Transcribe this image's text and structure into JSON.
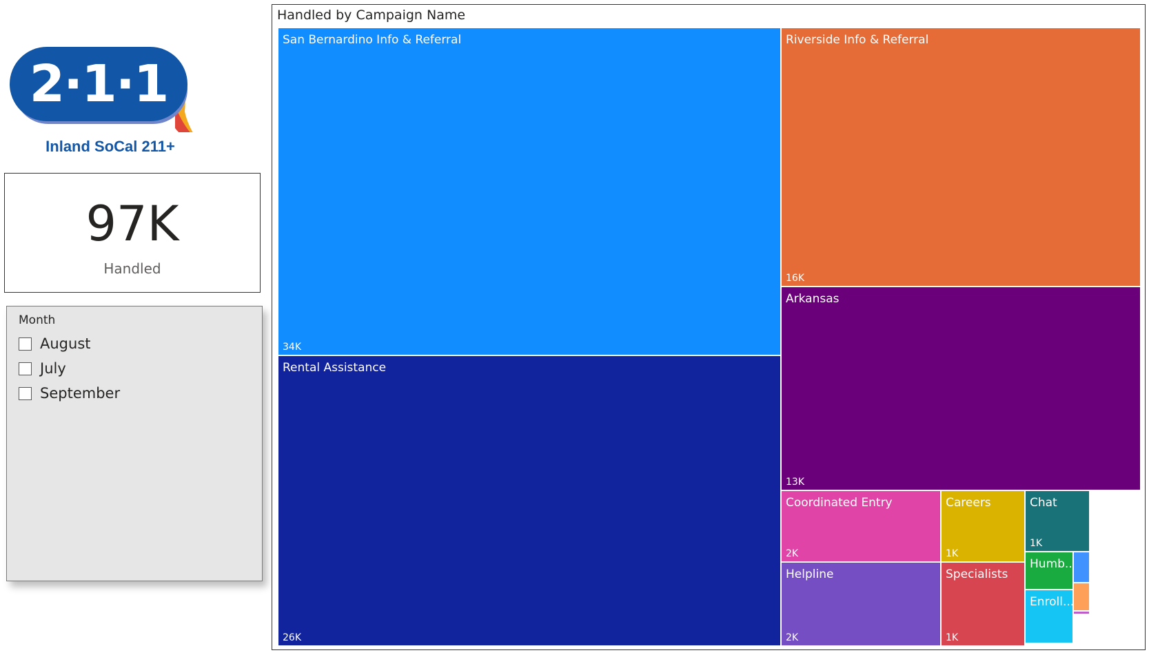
{
  "logo": {
    "mark": "2·1·1",
    "caption": "Inland SoCal 211+"
  },
  "kpi": {
    "value": "97K",
    "label": "Handled"
  },
  "slicer": {
    "title": "Month",
    "options": [
      {
        "label": "August",
        "checked": false
      },
      {
        "label": "July",
        "checked": false
      },
      {
        "label": "September",
        "checked": false
      }
    ]
  },
  "chart_data": {
    "type": "treemap",
    "title": "Handled by Campaign Name",
    "items": [
      {
        "name": "San Bernardino Info & Referral",
        "value": 34000,
        "value_label": "34K",
        "color": "#118dff"
      },
      {
        "name": "Rental Assistance",
        "value": 26000,
        "value_label": "26K",
        "color": "#12239e"
      },
      {
        "name": "Riverside Info & Referral",
        "value": 16000,
        "value_label": "16K",
        "color": "#e66c37"
      },
      {
        "name": "Arkansas",
        "value": 13000,
        "value_label": "13K",
        "color": "#6b007b"
      },
      {
        "name": "Coordinated Entry",
        "value": 2000,
        "value_label": "2K",
        "color": "#e044a7"
      },
      {
        "name": "Helpline",
        "value": 2000,
        "value_label": "2K",
        "color": "#744ec2"
      },
      {
        "name": "Careers",
        "value": 1000,
        "value_label": "1K",
        "color": "#d9b300"
      },
      {
        "name": "Specialists",
        "value": 1000,
        "value_label": "1K",
        "color": "#d64550"
      },
      {
        "name": "Chat",
        "value": 1000,
        "value_label": "1K",
        "color": "#197278"
      },
      {
        "name": "Humb...",
        "value": null,
        "value_label": "",
        "color": "#1aab40"
      },
      {
        "name": "Enroll...",
        "value": null,
        "value_label": "",
        "color": "#15c6f4"
      },
      {
        "name": "",
        "value": null,
        "value_label": "",
        "color": "#4092ff"
      },
      {
        "name": "",
        "value": null,
        "value_label": "",
        "color": "#ffa058"
      },
      {
        "name": "",
        "value": null,
        "value_label": "",
        "color": "#be5dc9"
      }
    ]
  }
}
